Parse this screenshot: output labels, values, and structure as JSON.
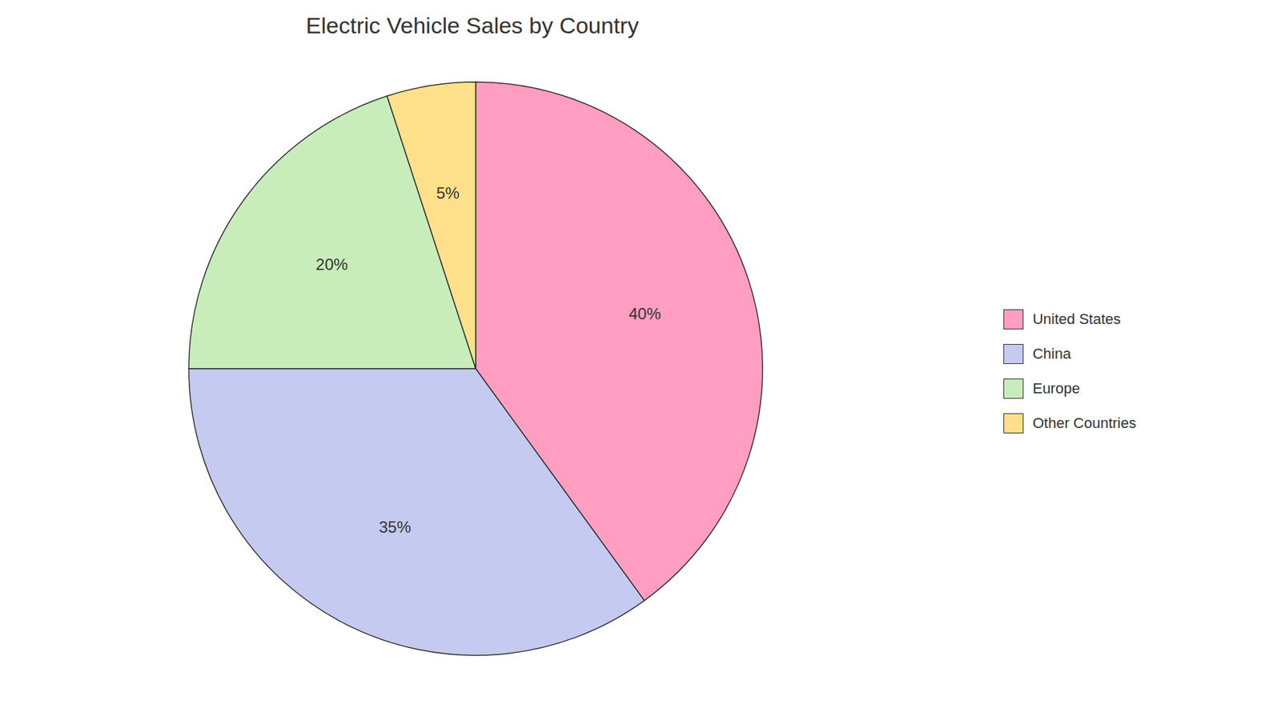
{
  "chart_data": {
    "type": "pie",
    "title": "Electric Vehicle Sales by Country",
    "categories": [
      "United States",
      "China",
      "Europe",
      "Other Countries"
    ],
    "values": [
      40,
      35,
      20,
      5
    ],
    "value_labels": [
      "40%",
      "35%",
      "20%",
      "5%"
    ],
    "colors": [
      "#FF9EC0",
      "#C5CAF0",
      "#C8EDBB",
      "#FFE08A"
    ],
    "data_labels": true,
    "legend": "right"
  }
}
